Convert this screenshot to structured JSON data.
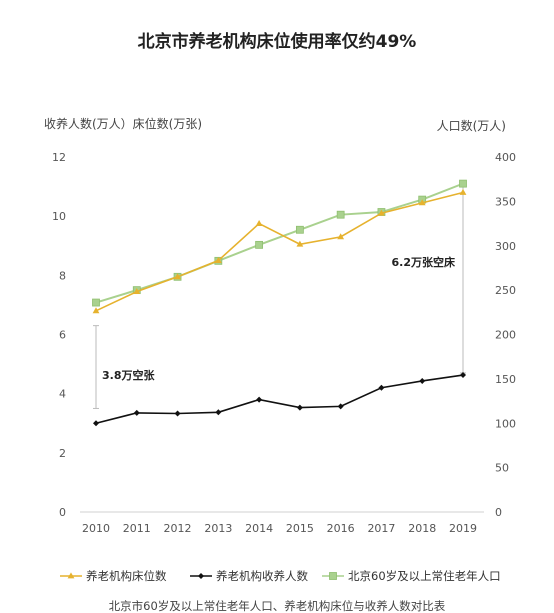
{
  "chart_data": {
    "type": "line",
    "title": "北京市养老机构床位使用率仅约49%",
    "left_axis_label": "收养人数(万人）床位数(万张)",
    "right_axis_label": "人口数(万人)",
    "caption": "北京市60岁及以上常住老年人口、养老机构床位与收养人数对比表",
    "x": [
      "2010",
      "2011",
      "2012",
      "2013",
      "2014",
      "2015",
      "2016",
      "2017",
      "2018",
      "2019"
    ],
    "y_left_lim": [
      0,
      12
    ],
    "y_left_ticks": [
      "0",
      "2",
      "4",
      "6",
      "8",
      "10",
      "12"
    ],
    "y_right_lim": [
      0,
      400
    ],
    "y_right_ticks": [
      "0",
      "50",
      "100",
      "150",
      "200",
      "250",
      "300",
      "350",
      "400"
    ],
    "grid": false,
    "legend_position": "bottom",
    "series": [
      {
        "name": "养老机构床位数",
        "axis": "left",
        "color": "#e6b22e",
        "marker": "triangle",
        "values": [
          6.8,
          7.45,
          7.95,
          8.5,
          9.75,
          9.05,
          9.3,
          10.1,
          10.45,
          10.8
        ]
      },
      {
        "name": "养老机构收养人数",
        "axis": "left",
        "color": "#111111",
        "marker": "diamond",
        "values": [
          3.0,
          3.35,
          3.33,
          3.37,
          3.8,
          3.53,
          3.57,
          4.2,
          4.43,
          4.63
        ]
      },
      {
        "name": "北京60岁及以上常住老年人口",
        "axis": "right",
        "color": "#a9d18e",
        "marker": "square",
        "values": [
          236,
          250,
          265,
          283,
          301,
          318,
          335,
          338,
          352,
          370
        ]
      }
    ],
    "annotations": [
      {
        "text": "3.8万空张",
        "x": "2010",
        "from": 3.5,
        "to": 6.3
      },
      {
        "text": "6.2万张空床",
        "x": "2019",
        "from": 4.7,
        "to": 11.0
      }
    ]
  }
}
